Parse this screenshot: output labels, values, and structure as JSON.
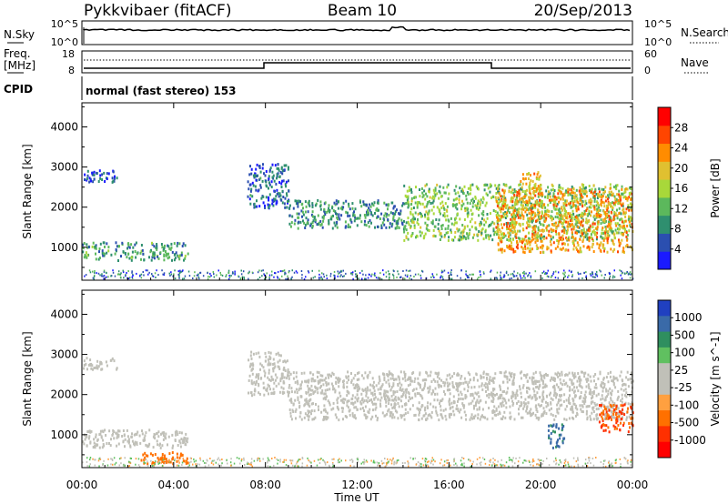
{
  "header": {
    "radar": "Pykkvibaer (fitACF)",
    "beam": "Beam 10",
    "date": "20/Sep/2013"
  },
  "panels": {
    "noise": {
      "left_label": "N.Sky",
      "right_label": "N.Search",
      "left_ticks": [
        "10^5",
        "10^0"
      ],
      "right_ticks": [
        "10^5",
        "10^0"
      ]
    },
    "freq": {
      "left_label_1": "Freq.",
      "left_label_2": "[MHz]",
      "right_label": "Nave",
      "left_ticks": [
        "18",
        "8"
      ],
      "right_ticks": [
        "60",
        "0"
      ]
    },
    "cpid": {
      "label": "CPID",
      "program": "normal (fast stereo) 153"
    }
  },
  "colors": {
    "power_scale": [
      "#1a1aff",
      "#2b4fb0",
      "#2f8f6f",
      "#5cb85c",
      "#a8d83a",
      "#e0c030",
      "#ff8c00",
      "#ff4500",
      "#ff0000"
    ],
    "velocity_scale": [
      "#2040c0",
      "#3a6aa8",
      "#2f8f5f",
      "#60c060",
      "#c0c0b8",
      "#c0c0b8",
      "#ffa040",
      "#ff7000",
      "#ff3000",
      "#ff0000"
    ],
    "ground_scatter": "#c0c0b8"
  },
  "chart_data": [
    {
      "type": "heatmap",
      "title": "Power",
      "xlabel": "Time UT",
      "ylabel": "Slant Range [km]",
      "x_ticks": [
        "00:00",
        "04:00",
        "08:00",
        "12:00",
        "16:00",
        "20:00",
        "00:00"
      ],
      "x_range_hours": [
        0,
        24
      ],
      "y_ticks": [
        "1000",
        "2000",
        "3000",
        "4000"
      ],
      "y_range_km": [
        180,
        4600
      ],
      "colorbar": {
        "label": "Power [dB]",
        "ticks": [
          "4",
          "8",
          "12",
          "16",
          "20",
          "24",
          "28"
        ],
        "range": [
          0,
          32
        ]
      },
      "features": [
        {
          "x_hours": [
            0.0,
            1.5
          ],
          "y_km": [
            2650,
            2950
          ],
          "value": 5
        },
        {
          "x_hours": [
            0.0,
            4.6
          ],
          "y_km": [
            700,
            1150
          ],
          "value": 10
        },
        {
          "x_hours": [
            7.2,
            9.0
          ],
          "y_km": [
            2000,
            3100
          ],
          "value": 6
        },
        {
          "x_hours": [
            9.0,
            14.0
          ],
          "y_km": [
            1500,
            2200
          ],
          "value": 9
        },
        {
          "x_hours": [
            14.0,
            24.0
          ],
          "y_km": [
            1200,
            2600
          ],
          "value": 14
        },
        {
          "x_hours": [
            18.0,
            24.0
          ],
          "y_km": [
            900,
            2500
          ],
          "value": 22
        },
        {
          "x_hours": [
            19.0,
            20.0
          ],
          "y_km": [
            2400,
            2900
          ],
          "value": 20
        }
      ]
    },
    {
      "type": "heatmap",
      "title": "Velocity",
      "xlabel": "Time UT",
      "ylabel": "Slant Range [km]",
      "x_ticks": [
        "00:00",
        "04:00",
        "08:00",
        "12:00",
        "16:00",
        "20:00",
        "00:00"
      ],
      "x_range_hours": [
        0,
        24
      ],
      "y_ticks": [
        "1000",
        "2000",
        "3000",
        "4000"
      ],
      "y_range_km": [
        180,
        4600
      ],
      "colorbar": {
        "label": "Velocity [m s^-1]",
        "ticks": [
          "1000",
          "500",
          "100",
          "25",
          "-25",
          "-100",
          "-500",
          "-1000"
        ]
      },
      "features": [
        {
          "x_hours": [
            0.0,
            1.5
          ],
          "y_km": [
            2650,
            2950
          ],
          "value": 0
        },
        {
          "x_hours": [
            0.0,
            4.6
          ],
          "y_km": [
            700,
            1150
          ],
          "value": 0
        },
        {
          "x_hours": [
            2.5,
            4.6
          ],
          "y_km": [
            300,
            600
          ],
          "value": -150
        },
        {
          "x_hours": [
            7.2,
            9.0
          ],
          "y_km": [
            2000,
            3100
          ],
          "value": 0
        },
        {
          "x_hours": [
            9.0,
            24.0
          ],
          "y_km": [
            1400,
            2600
          ],
          "value": 0
        },
        {
          "x_hours": [
            22.5,
            24.0
          ],
          "y_km": [
            1100,
            1800
          ],
          "value": -300
        },
        {
          "x_hours": [
            20.3,
            21.0
          ],
          "y_km": [
            700,
            1300
          ],
          "value": 400
        }
      ]
    }
  ]
}
